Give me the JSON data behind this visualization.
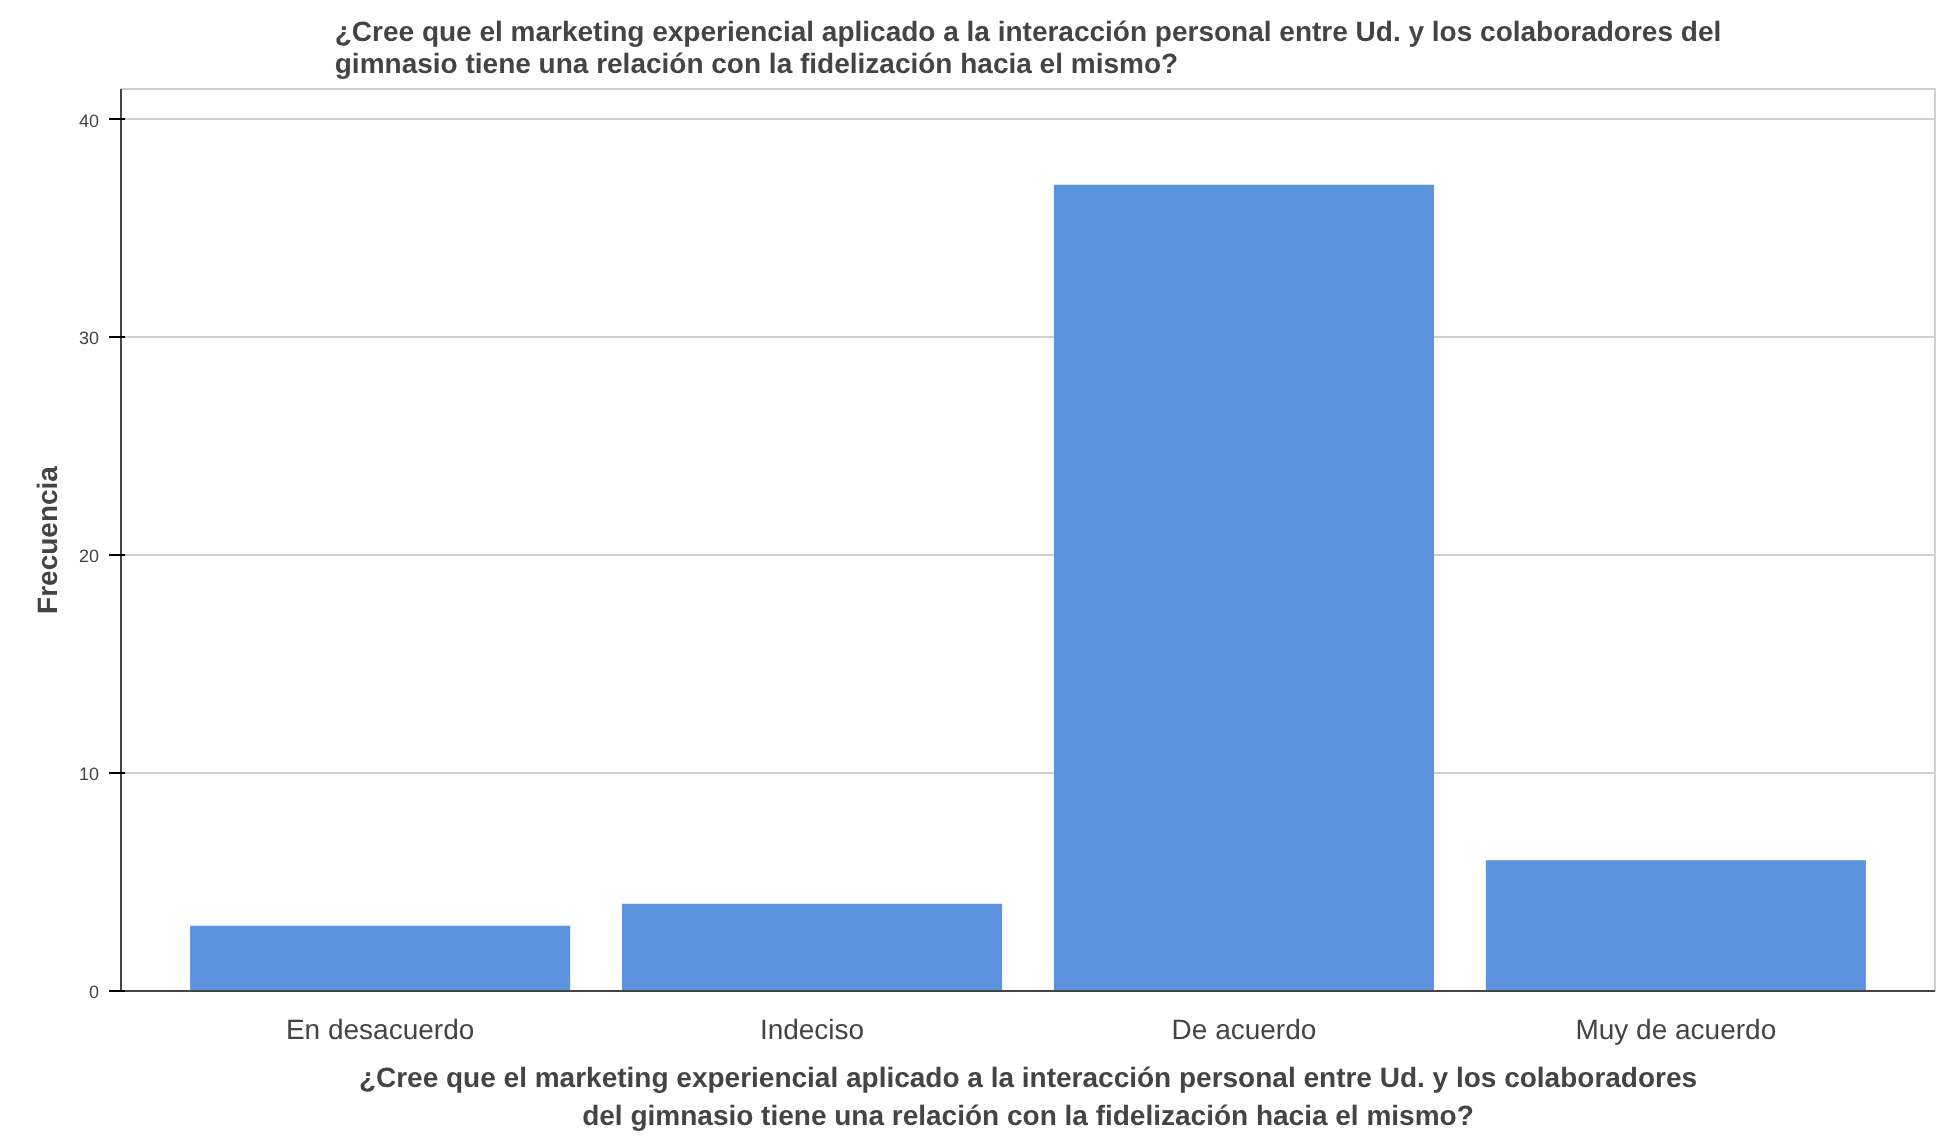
{
  "chart_data": {
    "type": "bar",
    "title": "¿Cree que el marketing experiencial aplicado a la interacción personal entre Ud. y los colaboradores del\ngimnasio tiene una relación con la fidelización hacia el mismo?",
    "xlabel": "¿Cree que el marketing experiencial aplicado a la interacción personal entre Ud. y los colaboradores\ndel gimnasio tiene una relación con la fidelización hacia el mismo?",
    "ylabel": "Frecuencia",
    "categories": [
      "En desacuerdo",
      "Indeciso",
      "De acuerdo",
      "Muy de acuerdo"
    ],
    "values": [
      3,
      4,
      37,
      6
    ],
    "color": "#5b93de",
    "ylim": [
      0,
      41.4
    ],
    "yticks": [
      0,
      10,
      20,
      30,
      40
    ],
    "grid": "y"
  }
}
